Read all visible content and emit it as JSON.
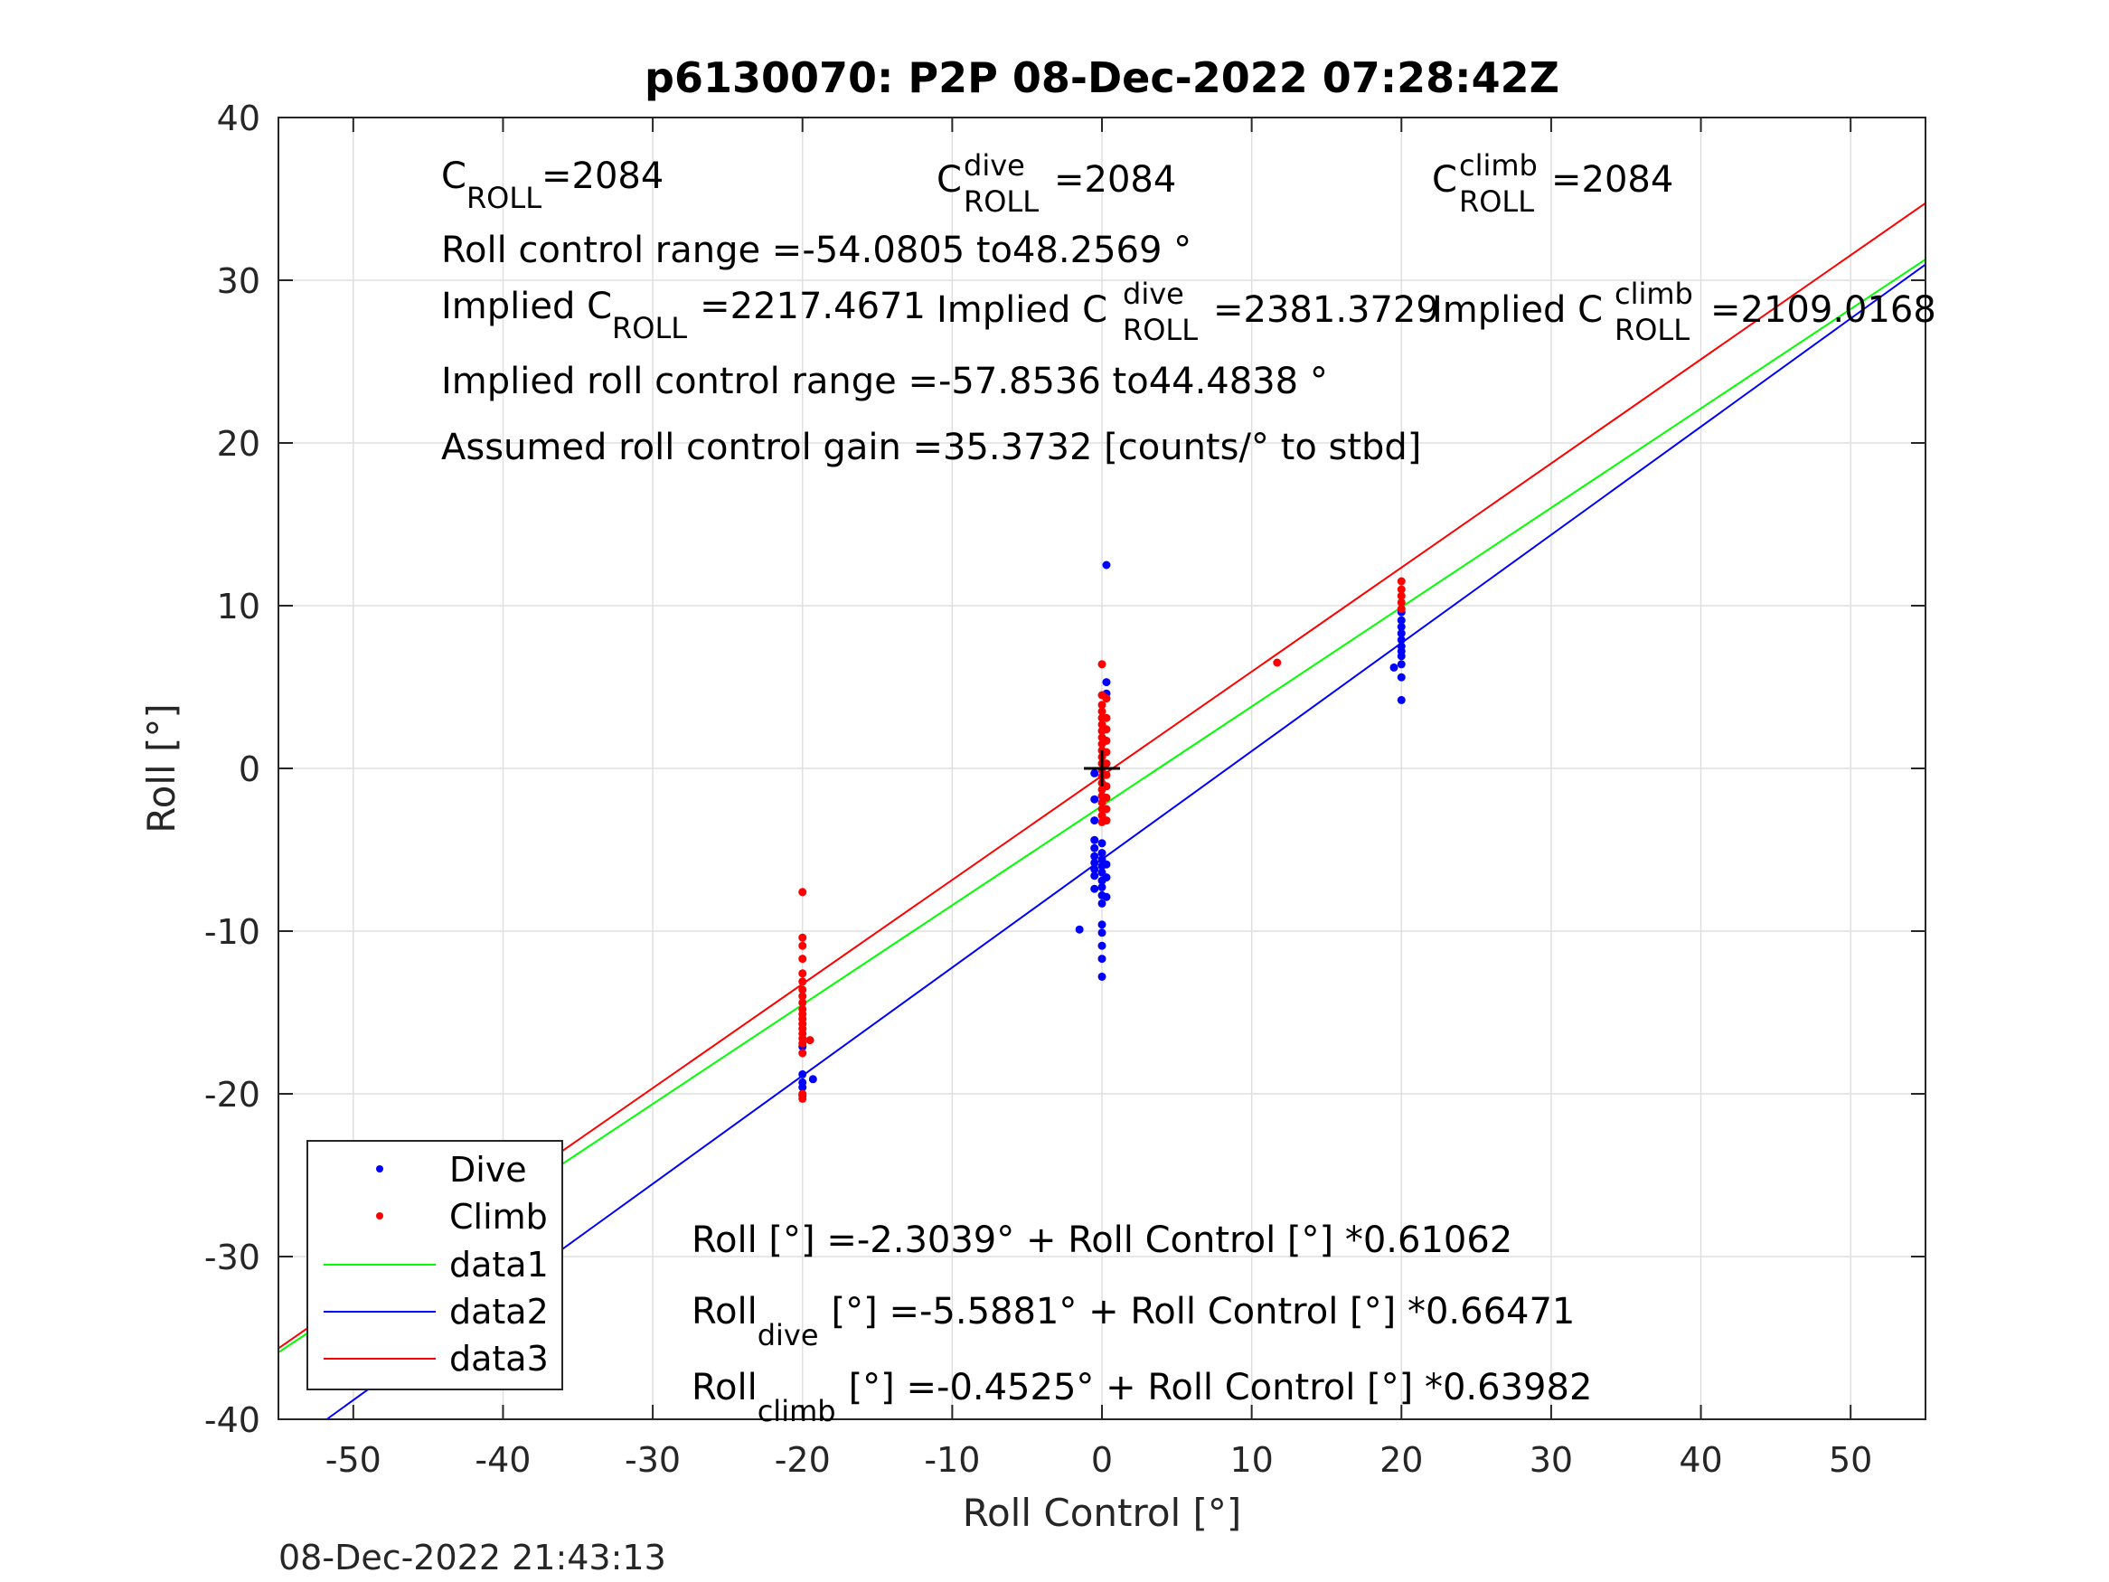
{
  "chart_data": {
    "type": "scatter",
    "title": "p6130070: P2P 08-Dec-2022 07:28:42Z",
    "xlabel": "Roll Control [°]",
    "ylabel": "Roll [°]",
    "xlim": [
      -55,
      55
    ],
    "ylim": [
      -40,
      40
    ],
    "x_ticks": [
      -50,
      -40,
      -30,
      -20,
      -10,
      0,
      10,
      20,
      30,
      40,
      50
    ],
    "y_ticks": [
      -40,
      -30,
      -20,
      -10,
      0,
      10,
      20,
      30,
      40
    ],
    "grid": true,
    "legend_position": "bottom-left",
    "timestamp": "08-Dec-2022 21:43:13",
    "annotations": {
      "c_roll": {
        "pre": "C",
        "sub": "ROLL",
        "post": "=2084"
      },
      "c_roll_dive": {
        "pre": "C",
        "sup": "dive",
        "sub": "ROLL",
        "post": "=2084"
      },
      "c_roll_climb": {
        "pre": "C",
        "sup": "climb",
        "sub": "ROLL",
        "post": "=2084"
      },
      "range": "Roll control range =-54.0805 to48.2569 °",
      "implied_c_roll": {
        "pre": "Implied C",
        "sub": "ROLL",
        "post": "=2217.4671"
      },
      "implied_c_roll_dive": {
        "pre": "Implied C",
        "sup": "dive",
        "sub": "ROLL",
        "post": "=2381.3729"
      },
      "implied_c_roll_climb": {
        "pre": "Implied C",
        "sup": "climb",
        "sub": "ROLL",
        "post": "=2109.0168"
      },
      "implied_range": "Implied roll control range =-57.8536 to44.4838 °",
      "gain": "Assumed roll control gain =35.3732 [counts/° to stbd]",
      "fit_all": {
        "pre": "Roll [°] =-2.3039° + Roll Control [°] *0.61062"
      },
      "fit_dive": {
        "pre": "Roll",
        "sub": "dive",
        "post": "[°] =-5.5881° + Roll Control [°] *0.66471"
      },
      "fit_climb": {
        "pre": "Roll",
        "sub": "climb",
        "post": "[°] =-0.4525° + Roll Control [°] *0.63982"
      }
    },
    "legend": [
      "Dive",
      "Climb",
      "data1",
      "data2",
      "data3"
    ],
    "colors": {
      "dive": "#0000ff",
      "climb": "#ff0000",
      "data1": "#00ff00",
      "data2": "#0000ff",
      "data3": "#ff0000",
      "center": "#000000"
    },
    "center_marker": [
      0,
      0
    ],
    "series": [
      {
        "name": "Dive",
        "kind": "scatter",
        "color": "#0000ff",
        "points": [
          [
            -20,
            -17.1
          ],
          [
            -20,
            -18.8
          ],
          [
            -20,
            -19.3
          ],
          [
            -20,
            -19.6
          ],
          [
            -20,
            -20.1
          ],
          [
            -19.3,
            -19.1
          ],
          [
            -1.5,
            -9.9
          ],
          [
            -0.5,
            -0.3
          ],
          [
            -0.5,
            -1.9
          ],
          [
            -0.5,
            -3.2
          ],
          [
            -0.5,
            -4.4
          ],
          [
            -0.5,
            -4.9
          ],
          [
            -0.5,
            -5.4
          ],
          [
            -0.5,
            -5.8
          ],
          [
            -0.5,
            -6.2
          ],
          [
            -0.5,
            -6.6
          ],
          [
            -0.5,
            -7.4
          ],
          [
            0,
            -4.6
          ],
          [
            0,
            -5.2
          ],
          [
            0,
            -5.6
          ],
          [
            0,
            -6.0
          ],
          [
            0,
            -6.4
          ],
          [
            0,
            -6.9
          ],
          [
            0,
            -7.3
          ],
          [
            0,
            -7.8
          ],
          [
            0,
            -8.3
          ],
          [
            0,
            -9.6
          ],
          [
            0,
            -10.1
          ],
          [
            0,
            -10.9
          ],
          [
            0,
            -11.7
          ],
          [
            0,
            -12.8
          ],
          [
            0.3,
            12.5
          ],
          [
            0.3,
            5.3
          ],
          [
            0.3,
            4.6
          ],
          [
            0.3,
            -5.9
          ],
          [
            0.3,
            -6.7
          ],
          [
            0.3,
            -7.9
          ],
          [
            19.5,
            6.2
          ],
          [
            20,
            4.2
          ],
          [
            20,
            5.6
          ],
          [
            20,
            6.4
          ],
          [
            20,
            6.9
          ],
          [
            20,
            7.2
          ],
          [
            20,
            7.5
          ],
          [
            20,
            7.9
          ],
          [
            20,
            8.3
          ],
          [
            20,
            8.7
          ],
          [
            20,
            9.1
          ],
          [
            20,
            9.6
          ]
        ]
      },
      {
        "name": "Climb",
        "kind": "scatter",
        "color": "#ff0000",
        "points": [
          [
            -20,
            -7.6
          ],
          [
            -20,
            -10.4
          ],
          [
            -20,
            -10.9
          ],
          [
            -20,
            -11.7
          ],
          [
            -20,
            -12.6
          ],
          [
            -20,
            -13.1
          ],
          [
            -20,
            -13.6
          ],
          [
            -20,
            -14.0
          ],
          [
            -20,
            -14.4
          ],
          [
            -20,
            -14.8
          ],
          [
            -20,
            -15.1
          ],
          [
            -20,
            -15.4
          ],
          [
            -20,
            -15.7
          ],
          [
            -20,
            -16.0
          ],
          [
            -20,
            -16.3
          ],
          [
            -20,
            -16.6
          ],
          [
            -20,
            -16.9
          ],
          [
            -20,
            -17.5
          ],
          [
            -20,
            -20.0
          ],
          [
            -20,
            -20.3
          ],
          [
            -19.5,
            -16.7
          ],
          [
            0,
            6.4
          ],
          [
            0,
            4.5
          ],
          [
            0,
            3.9
          ],
          [
            0,
            3.5
          ],
          [
            0,
            3.1
          ],
          [
            0,
            2.7
          ],
          [
            0,
            2.3
          ],
          [
            0,
            1.9
          ],
          [
            0,
            1.5
          ],
          [
            0,
            1.1
          ],
          [
            0,
            0.7
          ],
          [
            0,
            0.3
          ],
          [
            0,
            -0.1
          ],
          [
            0,
            -0.5
          ],
          [
            0,
            -0.9
          ],
          [
            0,
            -1.3
          ],
          [
            0,
            -1.7
          ],
          [
            0,
            -2.1
          ],
          [
            0,
            -2.5
          ],
          [
            0,
            -2.9
          ],
          [
            0,
            -3.3
          ],
          [
            0.3,
            4.3
          ],
          [
            0.3,
            3.1
          ],
          [
            0.3,
            2.4
          ],
          [
            0.3,
            1.7
          ],
          [
            0.3,
            1.0
          ],
          [
            0.3,
            0.3
          ],
          [
            0.3,
            -0.4
          ],
          [
            0.3,
            -1.1
          ],
          [
            0.3,
            -1.8
          ],
          [
            0.3,
            -2.5
          ],
          [
            0.3,
            -3.2
          ],
          [
            11.7,
            6.5
          ],
          [
            20,
            11.5
          ],
          [
            20,
            11.0
          ],
          [
            20,
            10.6
          ],
          [
            20,
            10.2
          ],
          [
            20,
            9.8
          ]
        ]
      },
      {
        "name": "data1",
        "kind": "line",
        "color": "#00ff00",
        "intercept": -2.3039,
        "slope": 0.61062
      },
      {
        "name": "data2",
        "kind": "line",
        "color": "#0000ff",
        "intercept": -5.5881,
        "slope": 0.66471
      },
      {
        "name": "data3",
        "kind": "line",
        "color": "#ff0000",
        "intercept": -0.4525,
        "slope": 0.63982
      }
    ]
  }
}
